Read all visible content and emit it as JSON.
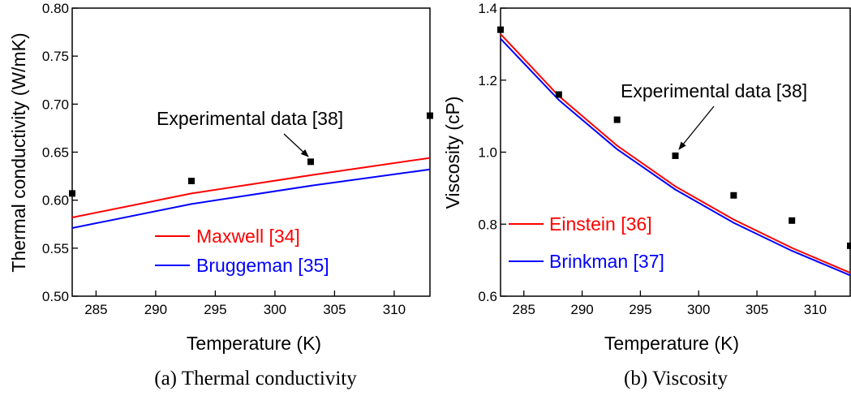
{
  "chart_data": [
    {
      "type": "line",
      "caption": "(a) Thermal conductivity",
      "xlabel": "Temperature (K)",
      "ylabel": "Thermal conductivity (W/mK)",
      "xlim": [
        283,
        313
      ],
      "ylim": [
        0.5,
        0.8
      ],
      "xticks": [
        285,
        290,
        295,
        300,
        305,
        310
      ],
      "yticks": [
        0.5,
        0.55,
        0.6,
        0.65,
        0.7,
        0.75,
        0.8
      ],
      "ytick_decimals": 2,
      "series": [
        {
          "name": "Maxwell [34]",
          "color": "#ff0000",
          "x": [
            283,
            293,
            303,
            313
          ],
          "y": [
            0.582,
            0.607,
            0.626,
            0.644
          ]
        },
        {
          "name": "Bruggeman [35]",
          "color": "#0000ff",
          "x": [
            283,
            293,
            303,
            313
          ],
          "y": [
            0.571,
            0.596,
            0.615,
            0.632
          ]
        }
      ],
      "experimental": {
        "x": [
          283,
          293,
          303,
          313
        ],
        "y": [
          0.607,
          0.62,
          0.64,
          0.688
        ]
      },
      "annotation": {
        "text": "Experimental data [38]",
        "target": [
          303,
          0.64
        ]
      },
      "legend": "bottom-center"
    },
    {
      "type": "line",
      "caption": "(b) Viscosity",
      "xlabel": "Temperature (K)",
      "ylabel": "Viscosity (cP)",
      "xlim": [
        283,
        313
      ],
      "ylim": [
        0.6,
        1.4
      ],
      "xticks": [
        285,
        290,
        295,
        300,
        305,
        310
      ],
      "yticks": [
        0.6,
        0.8,
        1.0,
        1.2,
        1.4
      ],
      "ytick_decimals": 1,
      "series": [
        {
          "name": "Einstein [36]",
          "color": "#ff0000",
          "x": [
            283,
            288,
            293,
            298,
            303,
            308,
            313
          ],
          "y": [
            1.328,
            1.156,
            1.018,
            0.905,
            0.813,
            0.734,
            0.665
          ]
        },
        {
          "name": "Brinkman [37]",
          "color": "#0000ff",
          "x": [
            283,
            288,
            293,
            298,
            303,
            308,
            313
          ],
          "y": [
            1.315,
            1.145,
            1.008,
            0.896,
            0.804,
            0.726,
            0.658
          ]
        }
      ],
      "experimental": {
        "x": [
          283,
          288,
          293,
          298,
          303,
          308,
          313
        ],
        "y": [
          1.34,
          1.16,
          1.09,
          0.99,
          0.88,
          0.81,
          0.74
        ]
      },
      "annotation": {
        "text": "Experimental data [38]",
        "target": [
          298,
          0.99
        ]
      },
      "legend": "bottom-left"
    }
  ]
}
